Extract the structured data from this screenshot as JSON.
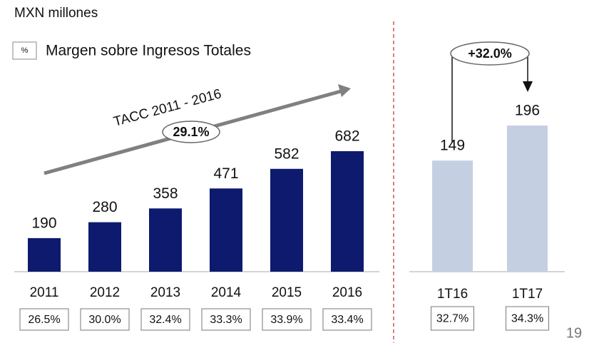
{
  "header": {
    "unit": "MXN millones",
    "legend_symbol": "%",
    "legend_label": "Margen sobre Ingresos Totales",
    "page_number": "19"
  },
  "chart_data": [
    {
      "type": "bar",
      "annotation": "TACC 2011 - 2016",
      "growth_label": "29.1%",
      "categories": [
        "2011",
        "2012",
        "2013",
        "2014",
        "2015",
        "2016"
      ],
      "values": [
        190,
        280,
        358,
        471,
        582,
        682
      ],
      "color": "#0d1a6e",
      "margins": [
        26.5,
        30.0,
        32.4,
        33.3,
        33.9,
        33.4
      ],
      "margin_labels": [
        "26.5%",
        "30.0%",
        "32.4%",
        "33.3%",
        "33.9%",
        "33.4%"
      ]
    },
    {
      "type": "bar",
      "growth_label": "+32.0%",
      "categories": [
        "1T16",
        "1T17"
      ],
      "values": [
        149,
        196
      ],
      "color": "#c5cfe2",
      "margins": [
        32.7,
        34.3
      ],
      "margin_labels": [
        "32.7%",
        "34.3%"
      ]
    }
  ]
}
